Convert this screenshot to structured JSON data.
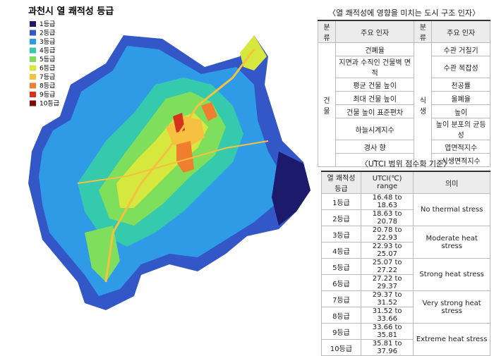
{
  "map": {
    "title": "과천시 열 쾌적성 등급",
    "legend": [
      {
        "label": "1등급",
        "color": "#1c1a6b"
      },
      {
        "label": "2등급",
        "color": "#3457c8"
      },
      {
        "label": "3등급",
        "color": "#2f9be6"
      },
      {
        "label": "4등급",
        "color": "#35c9ad"
      },
      {
        "label": "5등급",
        "color": "#7fdf5c"
      },
      {
        "label": "6등급",
        "color": "#d6e83e"
      },
      {
        "label": "7등급",
        "color": "#f6c040"
      },
      {
        "label": "8등급",
        "color": "#ef7f2e"
      },
      {
        "label": "9등급",
        "color": "#d6321e"
      },
      {
        "label": "10등급",
        "color": "#7c0d0d"
      }
    ]
  },
  "table1": {
    "title": "〈열 쾌적성에 영향을 미치는 도시 구조 인자〉",
    "headers": [
      "분류",
      "주요 인자",
      "분류",
      "주요 인자"
    ],
    "groups": [
      {
        "category": "건물",
        "factors": [
          "건폐율",
          "지면과 수직인 건물벽 면적",
          "평균 건물 높이",
          "최대 건물 높이",
          "건물 높이 표준편차",
          "하늘시계지수",
          "경사 향",
          "–"
        ]
      },
      {
        "category": "식생",
        "factors": [
          "수관 거칠기",
          "수관 복잡성",
          "천공률",
          "울폐율",
          "높이",
          "높이 분포의 균등성",
          "엽면적지수",
          "식생면적지수"
        ]
      }
    ]
  },
  "table2": {
    "title": "〈UTCI 범위 점수화 기준〉",
    "headers": [
      "열 쾌적성등급",
      "UTCI(℃) range",
      "의미"
    ],
    "rows": [
      {
        "grade": "1등급",
        "range": "16.48 to 18.63"
      },
      {
        "grade": "2등급",
        "range": "18.63 to 20.78"
      },
      {
        "grade": "3등급",
        "range": "20.78 to 22.93"
      },
      {
        "grade": "4등급",
        "range": "22.93 to 25.07"
      },
      {
        "grade": "5등급",
        "range": "25.07 to 27.22"
      },
      {
        "grade": "6등급",
        "range": "27.22 to 29.37"
      },
      {
        "grade": "7등급",
        "range": "29.37 to 31.52"
      },
      {
        "grade": "8등급",
        "range": "31.52 to 33.66"
      },
      {
        "grade": "9등급",
        "range": "33.66 to 35.81"
      },
      {
        "grade": "10등급",
        "range": "35.81 to 37.96"
      }
    ],
    "meanings": [
      "No thermal stress",
      "Moderate heat stress",
      "Strong heat stress",
      "Very strong heat stress",
      "Extreme heat stress"
    ]
  }
}
